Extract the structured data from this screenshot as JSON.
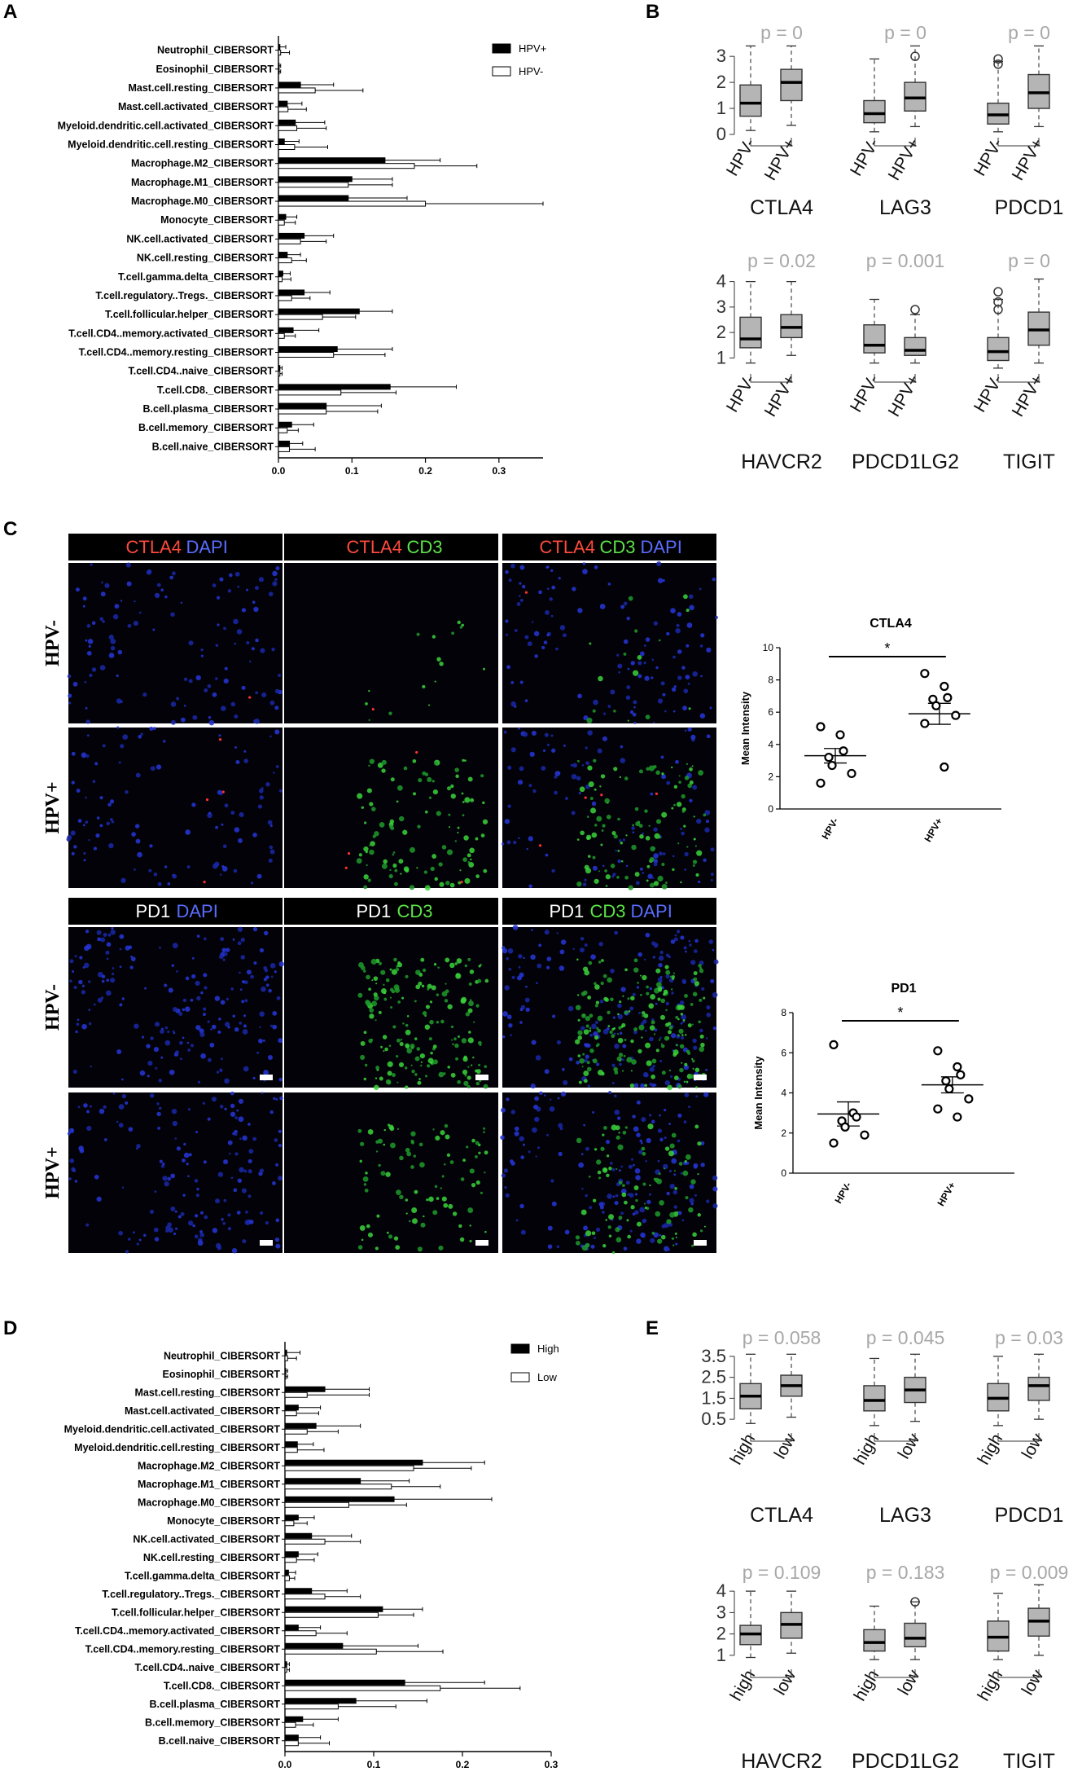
{
  "panels": {
    "A": {
      "label": "A",
      "legend": [
        {
          "name": "HPV+",
          "fill": "#000000"
        },
        {
          "name": "HPV-",
          "fill": "#ffffff"
        }
      ],
      "categories": [
        "Neutrophil_CIBERSORT",
        "Eosinophil_CIBERSORT",
        "Mast.cell.resting_CIBERSORT",
        "Mast.cell.activated_CIBERSORT",
        "Myeloid.dendritic.cell.activated_CIBERSORT",
        "Myeloid.dendritic.cell.resting_CIBERSORT",
        "Macrophage.M2_CIBERSORT",
        "Macrophage.M1_CIBERSORT",
        "Macrophage.M0_CIBERSORT",
        "Monocyte_CIBERSORT",
        "NK.cell.activated_CIBERSORT",
        "NK.cell.resting_CIBERSORT",
        "T.cell.gamma.delta_CIBERSORT",
        "T.cell.regulatory..Tregs._CIBERSORT",
        "T.cell.follicular.helper_CIBERSORT",
        "T.cell.CD4..memory.activated_CIBERSORT",
        "T.cell.CD4..memory.resting_CIBERSORT",
        "T.cell.CD4..naive_CIBERSORT",
        "T.cell.CD8._CIBERSORT",
        "B.cell.plasma_CIBERSORT",
        "B.cell.memory_CIBERSORT",
        "B.cell.naive_CIBERSORT"
      ],
      "xticks": [
        "0.0",
        "0.1",
        "0.2",
        "0.3"
      ]
    },
    "B": {
      "label": "B",
      "group_labels": [
        "HPV-",
        "HPV+"
      ],
      "plots": [
        {
          "gene": "CTLA4",
          "p": "p = 0",
          "yticks": [
            "3",
            "2",
            "1",
            "0"
          ]
        },
        {
          "gene": "LAG3",
          "p": "p = 0",
          "yticks": []
        },
        {
          "gene": "PDCD1",
          "p": "p = 0",
          "yticks": []
        },
        {
          "gene": "HAVCR2",
          "p": "p = 0.02",
          "yticks": [
            "4",
            "3",
            "2",
            "1"
          ]
        },
        {
          "gene": "PDCD1LG2",
          "p": "p = 0.001",
          "yticks": []
        },
        {
          "gene": "TIGIT",
          "p": "p = 0",
          "yticks": []
        }
      ]
    },
    "C": {
      "label": "C",
      "headers_top": [
        [
          {
            "t": "CTLA4",
            "c": "#ff4a3d"
          },
          {
            "t": "DAPI",
            "c": "#5a6cff"
          }
        ],
        [
          {
            "t": "CTLA4",
            "c": "#ff4a3d"
          },
          {
            "t": "CD3",
            "c": "#5ee34a"
          }
        ],
        [
          {
            "t": "CTLA4",
            "c": "#ff4a3d"
          },
          {
            "t": "CD3",
            "c": "#5ee34a"
          },
          {
            "t": "DAPI",
            "c": "#5a6cff"
          }
        ]
      ],
      "headers_bottom": [
        [
          {
            "t": "PD1",
            "c": "#ffffff"
          },
          {
            "t": "DAPI",
            "c": "#5a6cff"
          }
        ],
        [
          {
            "t": "PD1",
            "c": "#ffffff"
          },
          {
            "t": "CD3",
            "c": "#5ee34a"
          }
        ],
        [
          {
            "t": "PD1",
            "c": "#ffffff"
          },
          {
            "t": "CD3",
            "c": "#5ee34a"
          },
          {
            "t": "DAPI",
            "c": "#5a6cff"
          }
        ]
      ],
      "rows": [
        "HPV-",
        "HPV+",
        "HPV-",
        "HPV+"
      ],
      "scatter": [
        {
          "title": "CTLA4",
          "ylabel": "Mean Intensity",
          "groups": [
            "HPV-",
            "HPV+"
          ],
          "yticks": [
            "10",
            "8",
            "6",
            "4",
            "2",
            "0"
          ],
          "sig": "*"
        },
        {
          "title": "PD1",
          "ylabel": "Mean Intensity",
          "groups": [
            "HPV-",
            "HPV+"
          ],
          "yticks": [
            "8",
            "6",
            "4",
            "2",
            "0"
          ],
          "sig": "*"
        }
      ]
    },
    "D": {
      "label": "D",
      "legend": [
        {
          "name": "High",
          "fill": "#000000"
        },
        {
          "name": "Low",
          "fill": "#ffffff"
        }
      ],
      "categories": [
        "Neutrophil_CIBERSORT",
        "Eosinophil_CIBERSORT",
        "Mast.cell.resting_CIBERSORT",
        "Mast.cell.activated_CIBERSORT",
        "Myeloid.dendritic.cell.activated_CIBERSORT",
        "Myeloid.dendritic.cell.resting_CIBERSORT",
        "Macrophage.M2_CIBERSORT",
        "Macrophage.M1_CIBERSORT",
        "Macrophage.M0_CIBERSORT",
        "Monocyte_CIBERSORT",
        "NK.cell.activated_CIBERSORT",
        "NK.cell.resting_CIBERSORT",
        "T.cell.gamma.delta_CIBERSORT",
        "T.cell.regulatory..Tregs._CIBERSORT",
        "T.cell.follicular.helper_CIBERSORT",
        "T.cell.CD4..memory.activated_CIBERSORT",
        "T.cell.CD4..memory.resting_CIBERSORT",
        "T.cell.CD4..naive_CIBERSORT",
        "T.cell.CD8._CIBERSORT",
        "B.cell.plasma_CIBERSORT",
        "B.cell.memory_CIBERSORT",
        "B.cell.naive_CIBERSORT"
      ],
      "xticks": [
        "0.0",
        "0.1",
        "0.2",
        "0.3"
      ]
    },
    "E": {
      "label": "E",
      "group_labels": [
        "high",
        "low"
      ],
      "plots": [
        {
          "gene": "CTLA4",
          "p": "p = 0.058",
          "yticks": [
            "3.5",
            "2.5",
            "1.5",
            "0.5"
          ]
        },
        {
          "gene": "LAG3",
          "p": "p = 0.045",
          "yticks": []
        },
        {
          "gene": "PDCD1",
          "p": "p = 0.03",
          "yticks": []
        },
        {
          "gene": "HAVCR2",
          "p": "p = 0.109",
          "yticks": [
            "4",
            "3",
            "2",
            "1"
          ]
        },
        {
          "gene": "PDCD1LG2",
          "p": "p = 0.183",
          "yticks": []
        },
        {
          "gene": "TIGIT",
          "p": "p = 0.009",
          "yticks": []
        }
      ]
    }
  },
  "chart_data": [
    {
      "type": "bar",
      "id": "A",
      "orientation": "horizontal",
      "xlim": [
        0,
        0.36
      ],
      "categories": [
        "Neutrophil_CIBERSORT",
        "Eosinophil_CIBERSORT",
        "Mast.cell.resting_CIBERSORT",
        "Mast.cell.activated_CIBERSORT",
        "Myeloid.dendritic.cell.activated_CIBERSORT",
        "Myeloid.dendritic.cell.resting_CIBERSORT",
        "Macrophage.M2_CIBERSORT",
        "Macrophage.M1_CIBERSORT",
        "Macrophage.M0_CIBERSORT",
        "Monocyte_CIBERSORT",
        "NK.cell.activated_CIBERSORT",
        "NK.cell.resting_CIBERSORT",
        "T.cell.gamma.delta_CIBERSORT",
        "T.cell.regulatory..Tregs._CIBERSORT",
        "T.cell.follicular.helper_CIBERSORT",
        "T.cell.CD4..memory.activated_CIBERSORT",
        "T.cell.CD4..memory.resting_CIBERSORT",
        "T.cell.CD4..naive_CIBERSORT",
        "T.cell.CD8._CIBERSORT",
        "B.cell.plasma_CIBERSORT",
        "B.cell.memory_CIBERSORT",
        "B.cell.naive_CIBERSORT"
      ],
      "series": [
        {
          "name": "HPV-",
          "values": [
            0.003,
            0.001,
            0.05,
            0.013,
            0.025,
            0.022,
            0.185,
            0.095,
            0.2,
            0.008,
            0.03,
            0.018,
            0.005,
            0.018,
            0.06,
            0.008,
            0.075,
            0.002,
            0.085,
            0.065,
            0.012,
            0.015
          ],
          "errors": [
            0.012,
            0.002,
            0.065,
            0.025,
            0.04,
            0.045,
            0.085,
            0.06,
            0.16,
            0.015,
            0.035,
            0.02,
            0.012,
            0.025,
            0.045,
            0.015,
            0.07,
            0.003,
            0.075,
            0.07,
            0.015,
            0.035
          ]
        },
        {
          "name": "HPV+",
          "values": [
            0.002,
            0.001,
            0.03,
            0.012,
            0.023,
            0.008,
            0.145,
            0.1,
            0.095,
            0.01,
            0.035,
            0.012,
            0.006,
            0.035,
            0.11,
            0.02,
            0.08,
            0.002,
            0.152,
            0.065,
            0.018,
            0.015
          ],
          "errors": [
            0.008,
            0.002,
            0.045,
            0.02,
            0.04,
            0.02,
            0.075,
            0.055,
            0.08,
            0.015,
            0.04,
            0.018,
            0.01,
            0.035,
            0.045,
            0.035,
            0.075,
            0.003,
            0.09,
            0.075,
            0.03,
            0.018
          ]
        }
      ]
    },
    {
      "type": "box",
      "id": "B",
      "series_groups": [
        "HPV-",
        "HPV+"
      ],
      "genes": [
        {
          "gene": "CTLA4",
          "ylim": [
            0,
            3.6
          ],
          "stats": [
            [
              0.15,
              0.7,
              1.2,
              1.9,
              3.4
            ],
            [
              0.35,
              1.3,
              2.0,
              2.5,
              3.4
            ]
          ]
        },
        {
          "gene": "LAG3",
          "ylim": [
            0,
            3.6
          ],
          "stats": [
            [
              0.1,
              0.45,
              0.8,
              1.3,
              2.9
            ],
            [
              0.3,
              0.9,
              1.4,
              2.0,
              3.4
            ]
          ]
        },
        {
          "gene": "PDCD1",
          "ylim": [
            0,
            3.6
          ],
          "stats": [
            [
              0.1,
              0.4,
              0.75,
              1.2,
              2.8
            ],
            [
              0.3,
              1.0,
              1.6,
              2.3,
              3.4
            ]
          ]
        },
        {
          "gene": "HAVCR2",
          "ylim": [
            0.5,
            4.5
          ],
          "stats": [
            [
              0.8,
              1.4,
              1.75,
              2.6,
              4.0
            ],
            [
              1.1,
              1.8,
              2.2,
              2.7,
              4.0
            ]
          ]
        },
        {
          "gene": "PDCD1LG2",
          "ylim": [
            0.5,
            4.5
          ],
          "stats": [
            [
              0.8,
              1.2,
              1.5,
              2.3,
              3.3
            ],
            [
              0.8,
              1.1,
              1.3,
              1.8,
              2.7
            ]
          ]
        },
        {
          "gene": "TIGIT",
          "ylim": [
            0.5,
            4.5
          ],
          "stats": [
            [
              0.6,
              0.9,
              1.25,
              1.8,
              3.3
            ],
            [
              0.8,
              1.5,
              2.1,
              2.8,
              4.1
            ]
          ]
        }
      ]
    },
    {
      "type": "scatter",
      "id": "C-CTLA4",
      "title": "CTLA4",
      "ylabel": "Mean Intensity",
      "ylim": [
        0,
        10
      ],
      "groups": [
        {
          "name": "HPV-",
          "points": [
            5.1,
            4.6,
            3.6,
            3.2,
            2.7,
            2.2,
            1.6
          ],
          "mean": 3.3,
          "sem": 0.45
        },
        {
          "name": "HPV+",
          "points": [
            8.4,
            7.6,
            6.9,
            6.8,
            6.4,
            5.8,
            5.3,
            2.6
          ],
          "mean": 5.9,
          "sem": 0.65
        }
      ]
    },
    {
      "type": "scatter",
      "id": "C-PD1",
      "title": "PD1",
      "ylabel": "Mean Intensity",
      "ylim": [
        0,
        8
      ],
      "groups": [
        {
          "name": "HPV-",
          "points": [
            6.4,
            3.0,
            2.8,
            2.6,
            2.3,
            1.9,
            1.5
          ],
          "mean": 2.95,
          "sem": 0.6
        },
        {
          "name": "HPV+",
          "points": [
            6.1,
            5.3,
            4.9,
            4.6,
            4.2,
            3.7,
            3.2,
            2.8
          ],
          "mean": 4.4,
          "sem": 0.4
        }
      ]
    },
    {
      "type": "bar",
      "id": "D",
      "orientation": "horizontal",
      "xlim": [
        0,
        0.3
      ],
      "categories": [
        "Neutrophil_CIBERSORT",
        "Eosinophil_CIBERSORT",
        "Mast.cell.resting_CIBERSORT",
        "Mast.cell.activated_CIBERSORT",
        "Myeloid.dendritic.cell.activated_CIBERSORT",
        "Myeloid.dendritic.cell.resting_CIBERSORT",
        "Macrophage.M2_CIBERSORT",
        "Macrophage.M1_CIBERSORT",
        "Macrophage.M0_CIBERSORT",
        "Monocyte_CIBERSORT",
        "NK.cell.activated_CIBERSORT",
        "NK.cell.resting_CIBERSORT",
        "T.cell.gamma.delta_CIBERSORT",
        "T.cell.regulatory..Tregs._CIBERSORT",
        "T.cell.follicular.helper_CIBERSORT",
        "T.cell.CD4..memory.activated_CIBERSORT",
        "T.cell.CD4..memory.resting_CIBERSORT",
        "T.cell.CD4..naive_CIBERSORT",
        "T.cell.CD8._CIBERSORT",
        "B.cell.plasma_CIBERSORT",
        "B.cell.memory_CIBERSORT",
        "B.cell.naive_CIBERSORT"
      ],
      "series": [
        {
          "name": "Low",
          "values": [
            0.003,
            0.001,
            0.025,
            0.013,
            0.025,
            0.014,
            0.145,
            0.12,
            0.072,
            0.01,
            0.045,
            0.013,
            0.005,
            0.045,
            0.105,
            0.035,
            0.103,
            0.002,
            0.175,
            0.06,
            0.012,
            0.015
          ],
          "errors": [
            0.01,
            0.002,
            0.07,
            0.025,
            0.035,
            0.03,
            0.065,
            0.055,
            0.065,
            0.015,
            0.04,
            0.02,
            0.006,
            0.04,
            0.04,
            0.035,
            0.075,
            0.003,
            0.09,
            0.065,
            0.02,
            0.035
          ]
        },
        {
          "name": "High",
          "values": [
            0.002,
            0.001,
            0.045,
            0.015,
            0.035,
            0.014,
            0.155,
            0.085,
            0.123,
            0.015,
            0.03,
            0.015,
            0.004,
            0.03,
            0.11,
            0.015,
            0.065,
            0.002,
            0.135,
            0.08,
            0.02,
            0.015
          ],
          "errors": [
            0.015,
            0.002,
            0.05,
            0.025,
            0.05,
            0.018,
            0.07,
            0.055,
            0.11,
            0.018,
            0.045,
            0.022,
            0.008,
            0.04,
            0.045,
            0.025,
            0.085,
            0.003,
            0.09,
            0.08,
            0.04,
            0.025
          ]
        }
      ]
    },
    {
      "type": "box",
      "id": "E",
      "series_groups": [
        "high",
        "low"
      ],
      "genes": [
        {
          "gene": "CTLA4",
          "ylim": [
            0,
            4
          ],
          "stats": [
            [
              0.3,
              1.0,
              1.6,
              2.2,
              3.6
            ],
            [
              0.6,
              1.6,
              2.1,
              2.6,
              3.6
            ]
          ]
        },
        {
          "gene": "LAG3",
          "ylim": [
            0,
            4
          ],
          "stats": [
            [
              0.2,
              0.9,
              1.4,
              2.1,
              3.4
            ],
            [
              0.4,
              1.3,
              1.9,
              2.5,
              3.6
            ]
          ]
        },
        {
          "gene": "PDCD1",
          "ylim": [
            0,
            4
          ],
          "stats": [
            [
              0.2,
              0.9,
              1.5,
              2.2,
              3.5
            ],
            [
              0.5,
              1.4,
              2.1,
              2.5,
              3.6
            ]
          ]
        },
        {
          "gene": "HAVCR2",
          "ylim": [
            0.5,
            4.5
          ],
          "stats": [
            [
              0.9,
              1.5,
              2.0,
              2.4,
              4.0
            ],
            [
              1.1,
              1.8,
              2.45,
              3.0,
              4.0
            ]
          ]
        },
        {
          "gene": "PDCD1LG2",
          "ylim": [
            0.5,
            4.5
          ],
          "stats": [
            [
              0.8,
              1.2,
              1.6,
              2.2,
              3.3
            ],
            [
              0.8,
              1.4,
              1.8,
              2.5,
              3.5
            ]
          ]
        },
        {
          "gene": "TIGIT",
          "ylim": [
            0.5,
            4.5
          ],
          "stats": [
            [
              0.8,
              1.2,
              1.85,
              2.6,
              3.9
            ],
            [
              1.0,
              1.9,
              2.6,
              3.2,
              4.3
            ]
          ]
        }
      ]
    }
  ]
}
